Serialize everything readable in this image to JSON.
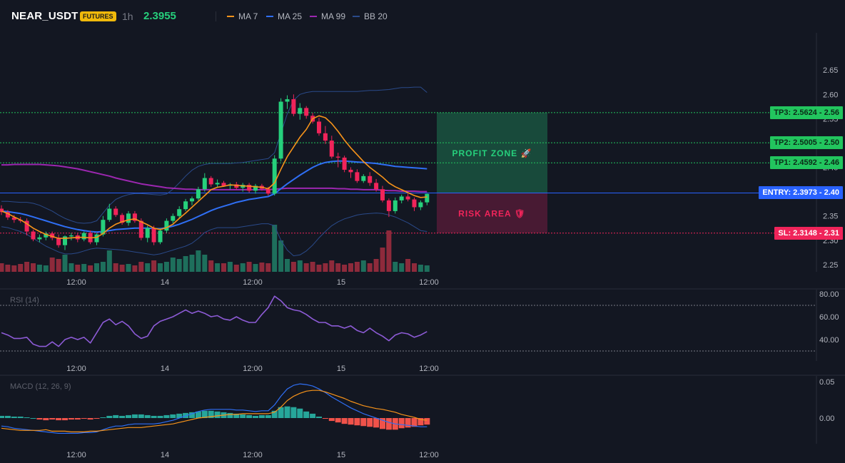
{
  "header": {
    "symbol": "NEAR_USDT",
    "badge": "FUTURES",
    "interval": "1h",
    "price": "2.3955",
    "legend": [
      {
        "label": "MA 7",
        "color": "#f7931a"
      },
      {
        "label": "MA 25",
        "color": "#2f6ff5"
      },
      {
        "label": "MA 99",
        "color": "#9c27b0"
      },
      {
        "label": "BB 20",
        "color": "#2a4a8a"
      }
    ]
  },
  "zones": {
    "profit_label": "PROFIT ZONE 🚀",
    "risk_label": "RISK AREA 🛡"
  },
  "levels": [
    {
      "label": "TP3: 2.5624",
      "axis": "2.56",
      "value": 2.5624,
      "kind": "tp"
    },
    {
      "label": "TP2: 2.5005",
      "axis": "2.50",
      "value": 2.5005,
      "kind": "tp"
    },
    {
      "label": "TP1: 2.4592",
      "axis": "2.46",
      "value": 2.4592,
      "kind": "tp"
    },
    {
      "label": "ENTRY: 2.3973",
      "axis": "2.40",
      "value": 2.3973,
      "kind": "entry"
    },
    {
      "label": "SL: 2.3148",
      "axis": "2.31",
      "value": 2.3148,
      "kind": "sl"
    }
  ],
  "panels": {
    "rsi_label": "RSI (14)",
    "macd_label": "MACD (12, 26, 9)"
  },
  "colors": {
    "up": "#26d07c",
    "down": "#f0245a",
    "tp": "#22c55e",
    "entry": "#2962ff",
    "sl": "#f0245a"
  },
  "chart_data": [
    {
      "type": "candlestick",
      "title": "",
      "x_tick_labels": [
        "12:00",
        "14",
        "12:00",
        "15",
        "12:00"
      ],
      "y_tick_labels": [
        "2.65",
        "2.60",
        "2.55",
        "2.50",
        "2.45",
        "2.40",
        "2.35",
        "2.30",
        "2.25"
      ],
      "ylim": [
        2.2,
        2.68
      ],
      "candles": [
        [
          2.365,
          2.372,
          2.352,
          2.358
        ],
        [
          2.358,
          2.362,
          2.342,
          2.347
        ],
        [
          2.347,
          2.352,
          2.336,
          2.342
        ],
        [
          2.342,
          2.348,
          2.336,
          2.34
        ],
        [
          2.34,
          2.345,
          2.31,
          2.318
        ],
        [
          2.318,
          2.322,
          2.298,
          2.302
        ],
        [
          2.302,
          2.312,
          2.296,
          2.306
        ],
        [
          2.306,
          2.318,
          2.3,
          2.314
        ],
        [
          2.314,
          2.318,
          2.3,
          2.305
        ],
        [
          2.305,
          2.312,
          2.285,
          2.29
        ],
        [
          2.29,
          2.31,
          2.28,
          2.308
        ],
        [
          2.308,
          2.315,
          2.3,
          2.31
        ],
        [
          2.31,
          2.314,
          2.296,
          2.302
        ],
        [
          2.302,
          2.318,
          2.298,
          2.315
        ],
        [
          2.315,
          2.32,
          2.292,
          2.296
        ],
        [
          2.296,
          2.315,
          2.29,
          2.312
        ],
        [
          2.312,
          2.35,
          2.308,
          2.342
        ],
        [
          2.342,
          2.375,
          2.338,
          2.365
        ],
        [
          2.365,
          2.37,
          2.348,
          2.352
        ],
        [
          2.352,
          2.356,
          2.332,
          2.336
        ],
        [
          2.336,
          2.36,
          2.33,
          2.355
        ],
        [
          2.355,
          2.36,
          2.336,
          2.34
        ],
        [
          2.34,
          2.345,
          2.3,
          2.305
        ],
        [
          2.305,
          2.33,
          2.296,
          2.325
        ],
        [
          2.325,
          2.33,
          2.29,
          2.296
        ],
        [
          2.296,
          2.325,
          2.292,
          2.32
        ],
        [
          2.32,
          2.345,
          2.315,
          2.34
        ],
        [
          2.34,
          2.355,
          2.335,
          2.35
        ],
        [
          2.35,
          2.37,
          2.345,
          2.364
        ],
        [
          2.364,
          2.385,
          2.36,
          2.38
        ],
        [
          2.38,
          2.39,
          2.372,
          2.386
        ],
        [
          2.386,
          2.41,
          2.382,
          2.405
        ],
        [
          2.405,
          2.438,
          2.4,
          2.428
        ],
        [
          2.428,
          2.432,
          2.41,
          2.415
        ],
        [
          2.415,
          2.425,
          2.408,
          2.418
        ],
        [
          2.418,
          2.422,
          2.41,
          2.412
        ],
        [
          2.412,
          2.418,
          2.405,
          2.415
        ],
        [
          2.415,
          2.42,
          2.404,
          2.408
        ],
        [
          2.408,
          2.418,
          2.4,
          2.414
        ],
        [
          2.414,
          2.418,
          2.398,
          2.402
        ],
        [
          2.402,
          2.416,
          2.396,
          2.412
        ],
        [
          2.412,
          2.416,
          2.402,
          2.406
        ],
        [
          2.406,
          2.41,
          2.392,
          2.396
        ],
        [
          2.396,
          2.475,
          2.392,
          2.468
        ],
        [
          2.468,
          2.592,
          2.462,
          2.585
        ],
        [
          2.585,
          2.598,
          2.57,
          2.59
        ],
        [
          2.59,
          2.6,
          2.555,
          2.56
        ],
        [
          2.56,
          2.582,
          2.548,
          2.572
        ],
        [
          2.572,
          2.576,
          2.55,
          2.556
        ],
        [
          2.556,
          2.562,
          2.54,
          2.544
        ],
        [
          2.544,
          2.552,
          2.515,
          2.52
        ],
        [
          2.52,
          2.535,
          2.498,
          2.505
        ],
        [
          2.505,
          2.515,
          2.468,
          2.472
        ],
        [
          2.472,
          2.48,
          2.45,
          2.47
        ],
        [
          2.47,
          2.474,
          2.44,
          2.445
        ],
        [
          2.445,
          2.45,
          2.428,
          2.44
        ],
        [
          2.44,
          2.446,
          2.418,
          2.422
        ],
        [
          2.422,
          2.436,
          2.418,
          2.432
        ],
        [
          2.432,
          2.44,
          2.412,
          2.418
        ],
        [
          2.418,
          2.426,
          2.4,
          2.405
        ],
        [
          2.405,
          2.412,
          2.378,
          2.382
        ],
        [
          2.382,
          2.386,
          2.348,
          2.36
        ],
        [
          2.36,
          2.388,
          2.355,
          2.382
        ],
        [
          2.382,
          2.394,
          2.376,
          2.39
        ],
        [
          2.39,
          2.396,
          2.38,
          2.384
        ],
        [
          2.384,
          2.388,
          2.36,
          2.368
        ],
        [
          2.368,
          2.382,
          2.362,
          2.378
        ],
        [
          2.378,
          2.396,
          2.372,
          2.3955
        ]
      ],
      "volume": [
        12,
        10,
        9,
        11,
        14,
        12,
        10,
        9,
        20,
        18,
        24,
        12,
        10,
        11,
        9,
        12,
        14,
        30,
        12,
        10,
        11,
        9,
        14,
        12,
        16,
        12,
        14,
        20,
        18,
        22,
        24,
        30,
        24,
        16,
        12,
        12,
        14,
        10,
        12,
        14,
        11,
        13,
        12,
        66,
        44,
        18,
        14,
        16,
        12,
        14,
        10,
        12,
        16,
        12,
        10,
        12,
        14,
        16,
        12,
        18,
        34,
        58,
        14,
        12,
        18,
        12,
        10,
        9
      ],
      "ma7": [
        2.36,
        2.355,
        2.348,
        2.342,
        2.334,
        2.325,
        2.318,
        2.312,
        2.308,
        2.304,
        2.304,
        2.305,
        2.306,
        2.306,
        2.305,
        2.306,
        2.314,
        2.325,
        2.333,
        2.338,
        2.342,
        2.344,
        2.338,
        2.332,
        2.325,
        2.322,
        2.326,
        2.333,
        2.345,
        2.356,
        2.368,
        2.38,
        2.392,
        2.404,
        2.409,
        2.411,
        2.414,
        2.413,
        2.412,
        2.411,
        2.41,
        2.409,
        2.406,
        2.418,
        2.446,
        2.472,
        2.492,
        2.512,
        2.528,
        2.55,
        2.556,
        2.552,
        2.54,
        2.524,
        2.506,
        2.49,
        2.476,
        2.462,
        2.45,
        2.44,
        2.43,
        2.418,
        2.41,
        2.404,
        2.398,
        2.392,
        2.388,
        2.389
      ],
      "ma25": [
        2.36,
        2.359,
        2.357,
        2.355,
        2.352,
        2.348,
        2.344,
        2.34,
        2.336,
        2.332,
        2.328,
        2.325,
        2.322,
        2.32,
        2.318,
        2.317,
        2.318,
        2.32,
        2.322,
        2.323,
        2.324,
        2.325,
        2.325,
        2.325,
        2.324,
        2.324,
        2.326,
        2.329,
        2.333,
        2.338,
        2.343,
        2.349,
        2.355,
        2.361,
        2.366,
        2.37,
        2.374,
        2.378,
        2.381,
        2.384,
        2.386,
        2.388,
        2.39,
        2.396,
        2.406,
        2.416,
        2.425,
        2.434,
        2.442,
        2.45,
        2.456,
        2.46,
        2.462,
        2.463,
        2.463,
        2.462,
        2.461,
        2.46,
        2.459,
        2.458,
        2.456,
        2.454,
        2.452,
        2.451,
        2.45,
        2.449,
        2.448,
        2.447
      ],
      "ma99": [
        2.455,
        2.455,
        2.456,
        2.456,
        2.456,
        2.456,
        2.456,
        2.455,
        2.454,
        2.453,
        2.451,
        2.449,
        2.447,
        2.444,
        2.441,
        2.438,
        2.435,
        2.432,
        2.428,
        2.425,
        2.422,
        2.419,
        2.416,
        2.414,
        2.412,
        2.41,
        2.408,
        2.407,
        2.406,
        2.405,
        2.405,
        2.404,
        2.404,
        2.404,
        2.404,
        2.404,
        2.404,
        2.404,
        2.404,
        2.404,
        2.404,
        2.404,
        2.404,
        2.405,
        2.406,
        2.407,
        2.407,
        2.407,
        2.407,
        2.407,
        2.407,
        2.407,
        2.407,
        2.406,
        2.406,
        2.405,
        2.405,
        2.404,
        2.404,
        2.404,
        2.403,
        2.402,
        2.402,
        2.401,
        2.401,
        2.401,
        2.4,
        2.4
      ],
      "bb_upper": [
        2.38,
        2.38,
        2.379,
        2.378,
        2.378,
        2.376,
        2.372,
        2.366,
        2.36,
        2.352,
        2.345,
        2.34,
        2.336,
        2.335,
        2.336,
        2.34,
        2.356,
        2.372,
        2.384,
        2.39,
        2.394,
        2.396,
        2.396,
        2.395,
        2.394,
        2.393,
        2.395,
        2.405,
        2.418,
        2.432,
        2.444,
        2.452,
        2.456,
        2.458,
        2.458,
        2.458,
        2.458,
        2.459,
        2.46,
        2.462,
        2.464,
        2.466,
        2.468,
        2.48,
        2.52,
        2.56,
        2.588,
        2.6,
        2.604,
        2.606,
        2.606,
        2.606,
        2.606,
        2.606,
        2.606,
        2.606,
        2.606,
        2.607,
        2.608,
        2.608,
        2.609,
        2.61,
        2.612,
        2.614,
        2.614,
        2.615,
        2.615,
        2.604
      ],
      "bb_lower": [
        2.328,
        2.326,
        2.322,
        2.318,
        2.312,
        2.304,
        2.296,
        2.288,
        2.282,
        2.276,
        2.272,
        2.272,
        2.274,
        2.278,
        2.282,
        2.284,
        2.283,
        2.282,
        2.281,
        2.28,
        2.278,
        2.276,
        2.274,
        2.272,
        2.27,
        2.272,
        2.276,
        2.28,
        2.284,
        2.288,
        2.294,
        2.304,
        2.316,
        2.322,
        2.326,
        2.326,
        2.326,
        2.326,
        2.328,
        2.33,
        2.332,
        2.334,
        2.334,
        2.33,
        2.3,
        2.28,
        2.268,
        2.27,
        2.278,
        2.29,
        2.305,
        2.318,
        2.33,
        2.338,
        2.344,
        2.348,
        2.352,
        2.354,
        2.355,
        2.356,
        2.355,
        2.352,
        2.348,
        2.342,
        2.336,
        2.328,
        2.32,
        2.318
      ]
    },
    {
      "type": "line",
      "title": "RSI (14)",
      "y_tick_labels": [
        "80.00",
        "60.00",
        "40.00"
      ],
      "ylim": [
        20,
        83
      ],
      "bands": [
        70,
        30
      ],
      "values": [
        46,
        44,
        41,
        41,
        42,
        36,
        34,
        34,
        38,
        34,
        40,
        42,
        40,
        42,
        37,
        46,
        55,
        58,
        53,
        56,
        52,
        45,
        41,
        43,
        52,
        56,
        58,
        60,
        63,
        66,
        63,
        65,
        63,
        60,
        61,
        58,
        57,
        60,
        57,
        55,
        55,
        62,
        68,
        78,
        74,
        68,
        66,
        65,
        62,
        58,
        55,
        55,
        52,
        52,
        50,
        52,
        48,
        46,
        50,
        46,
        43,
        39,
        44,
        46,
        45,
        42,
        44,
        47
      ]
    },
    {
      "type": "bar+line",
      "title": "MACD (12, 26, 9)",
      "y_tick_labels": [
        "0.05",
        "0.00"
      ],
      "ylim": [
        -0.035,
        0.056
      ],
      "histogram": [
        0.003,
        0.003,
        0.002,
        0.002,
        0.001,
        0,
        -0.002,
        -0.003,
        -0.002,
        -0.003,
        -0.003,
        -0.002,
        -0.002,
        -0.001,
        -0.002,
        -0.001,
        0.001,
        0.003,
        0.004,
        0.003,
        0.004,
        0.005,
        0.005,
        0.004,
        0.003,
        0.003,
        0.004,
        0.005,
        0.006,
        0.007,
        0.008,
        0.009,
        0.01,
        0.01,
        0.009,
        0.008,
        0.007,
        0.006,
        0.005,
        0.004,
        0.003,
        0.004,
        0.004,
        0.01,
        0.015,
        0.016,
        0.015,
        0.013,
        0.009,
        0.006,
        0.002,
        -0.001,
        -0.004,
        -0.006,
        -0.008,
        -0.009,
        -0.01,
        -0.011,
        -0.012,
        -0.013,
        -0.015,
        -0.016,
        -0.016,
        -0.014,
        -0.013,
        -0.012,
        -0.01,
        -0.009
      ],
      "macd": [
        -0.011,
        -0.012,
        -0.014,
        -0.015,
        -0.016,
        -0.017,
        -0.018,
        -0.019,
        -0.02,
        -0.021,
        -0.021,
        -0.021,
        -0.021,
        -0.02,
        -0.02,
        -0.019,
        -0.016,
        -0.013,
        -0.011,
        -0.011,
        -0.009,
        -0.008,
        -0.008,
        -0.008,
        -0.008,
        -0.007,
        -0.005,
        -0.003,
        0,
        0.003,
        0.006,
        0.009,
        0.011,
        0.012,
        0.012,
        0.012,
        0.012,
        0.011,
        0.011,
        0.01,
        0.009,
        0.01,
        0.01,
        0.018,
        0.03,
        0.04,
        0.045,
        0.047,
        0.046,
        0.044,
        0.04,
        0.035,
        0.029,
        0.024,
        0.019,
        0.014,
        0.01,
        0.006,
        0.003,
        0,
        -0.003,
        -0.006,
        -0.008,
        -0.009,
        -0.01,
        -0.011,
        -0.012,
        -0.012
      ],
      "signal": [
        -0.014,
        -0.015,
        -0.016,
        -0.017,
        -0.017,
        -0.017,
        -0.017,
        -0.016,
        -0.018,
        -0.018,
        -0.018,
        -0.019,
        -0.019,
        -0.019,
        -0.018,
        -0.018,
        -0.017,
        -0.016,
        -0.015,
        -0.014,
        -0.013,
        -0.013,
        -0.013,
        -0.012,
        -0.011,
        -0.01,
        -0.009,
        -0.008,
        -0.006,
        -0.004,
        -0.002,
        0,
        0.001,
        0.002,
        0.003,
        0.004,
        0.005,
        0.005,
        0.006,
        0.006,
        0.006,
        0.006,
        0.006,
        0.008,
        0.015,
        0.024,
        0.03,
        0.034,
        0.037,
        0.038,
        0.038,
        0.036,
        0.033,
        0.03,
        0.027,
        0.023,
        0.02,
        0.017,
        0.015,
        0.013,
        0.012,
        0.01,
        0.008,
        0.005,
        0.003,
        0.001,
        -0.002,
        -0.003
      ]
    }
  ]
}
